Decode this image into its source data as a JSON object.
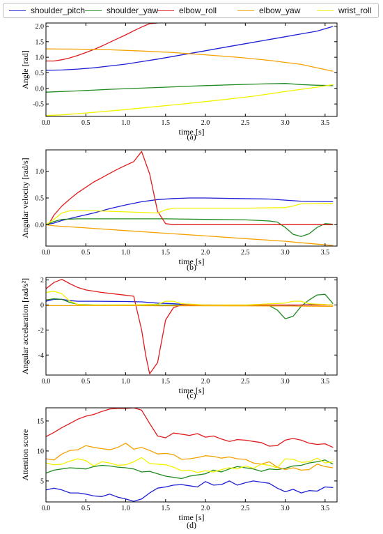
{
  "colors": {
    "shoulder_pitch": "#1f1fd6",
    "shoulder_yaw": "#1f8a1f",
    "elbow_roll": "#e01a1a",
    "elbow_yaw": "#f5a200",
    "wrist_roll": "#f2f200"
  },
  "legend": [
    "shoulder_pitch",
    "shoulder_yaw",
    "elbow_roll",
    "elbow_yaw",
    "wrist_roll"
  ],
  "chart_data": [
    {
      "type": "line",
      "caption": "(a)",
      "xlabel": "time [s]",
      "ylabel": "Angle [rad]",
      "xlim": [
        0,
        3.65
      ],
      "ylim": [
        -0.9,
        2.1
      ],
      "xticks": [
        "0.0",
        "0.5",
        "1.0",
        "1.5",
        "2.0",
        "2.5",
        "3.0",
        "3.5"
      ],
      "yticks": [
        "-0.5",
        "0.0",
        "0.5",
        "1.0",
        "1.5",
        "2.0"
      ],
      "series": [
        {
          "name": "shoulder_pitch",
          "x": [
            0,
            0.2,
            0.4,
            0.6,
            0.8,
            1.0,
            1.2,
            1.4,
            1.6,
            1.8,
            2.0,
            2.2,
            2.4,
            2.6,
            2.8,
            3.0,
            3.2,
            3.4,
            3.6
          ],
          "y": [
            0.58,
            0.59,
            0.62,
            0.66,
            0.72,
            0.78,
            0.86,
            0.94,
            1.03,
            1.12,
            1.21,
            1.3,
            1.39,
            1.48,
            1.57,
            1.66,
            1.75,
            1.84,
            1.99
          ]
        },
        {
          "name": "shoulder_yaw",
          "x": [
            0,
            0.4,
            0.8,
            1.2,
            1.6,
            2.0,
            2.4,
            2.8,
            3.0,
            3.2,
            3.4,
            3.6
          ],
          "y": [
            -0.12,
            -0.08,
            -0.03,
            0.01,
            0.05,
            0.09,
            0.12,
            0.15,
            0.16,
            0.12,
            0.1,
            0.09
          ]
        },
        {
          "name": "elbow_roll",
          "x": [
            0,
            0.1,
            0.2,
            0.3,
            0.4,
            0.5,
            0.6,
            0.7,
            0.8,
            0.9,
            1.0,
            1.1,
            1.2,
            1.3,
            1.4
          ],
          "y": [
            0.88,
            0.88,
            0.92,
            0.98,
            1.06,
            1.15,
            1.25,
            1.36,
            1.48,
            1.6,
            1.72,
            1.85,
            1.97,
            2.08,
            2.1
          ]
        },
        {
          "name": "elbow_yaw",
          "x": [
            0,
            0.4,
            0.8,
            1.2,
            1.6,
            2.0,
            2.4,
            2.8,
            3.2,
            3.6
          ],
          "y": [
            1.27,
            1.26,
            1.24,
            1.2,
            1.15,
            1.08,
            1.0,
            0.9,
            0.77,
            0.55
          ]
        },
        {
          "name": "wrist_roll",
          "x": [
            0,
            0.2,
            0.6,
            1.0,
            1.4,
            1.8,
            2.2,
            2.6,
            3.0,
            3.4,
            3.6
          ],
          "y": [
            -0.87,
            -0.85,
            -0.77,
            -0.68,
            -0.58,
            -0.48,
            -0.37,
            -0.25,
            -0.1,
            0.04,
            0.12
          ]
        }
      ]
    },
    {
      "type": "line",
      "caption": "(b)",
      "xlabel": "time [s]",
      "ylabel": "Angular velocity [rad/s]",
      "xlim": [
        0,
        3.65
      ],
      "ylim": [
        -0.4,
        1.4
      ],
      "xticks": [
        "0.0",
        "0.5",
        "1.0",
        "1.5",
        "2.0",
        "2.5",
        "3.0",
        "3.5"
      ],
      "yticks": [
        "0.0",
        "0.5",
        "1.0"
      ],
      "series": [
        {
          "name": "shoulder_pitch",
          "x": [
            0,
            0.1,
            0.2,
            0.4,
            0.6,
            0.8,
            1.0,
            1.2,
            1.4,
            1.6,
            1.8,
            2.0,
            2.4,
            2.8,
            3.0,
            3.2,
            3.6
          ],
          "y": [
            0,
            0.03,
            0.08,
            0.15,
            0.22,
            0.3,
            0.37,
            0.43,
            0.47,
            0.49,
            0.5,
            0.5,
            0.49,
            0.48,
            0.46,
            0.44,
            0.43
          ]
        },
        {
          "name": "shoulder_yaw",
          "x": [
            0,
            0.1,
            0.2,
            0.4,
            0.6,
            1.0,
            1.5,
            2.0,
            2.5,
            2.8,
            2.9,
            3.0,
            3.1,
            3.2,
            3.3,
            3.4,
            3.5,
            3.6
          ],
          "y": [
            0,
            0.06,
            0.1,
            0.11,
            0.11,
            0.11,
            0.11,
            0.1,
            0.09,
            0.07,
            0.05,
            -0.05,
            -0.18,
            -0.22,
            -0.17,
            -0.05,
            0.02,
            0.01
          ]
        },
        {
          "name": "elbow_roll",
          "x": [
            0,
            0.05,
            0.1,
            0.2,
            0.3,
            0.4,
            0.5,
            0.6,
            0.7,
            0.8,
            0.9,
            1.0,
            1.1,
            1.2,
            1.3,
            1.4,
            1.5,
            1.6,
            2.0,
            2.5,
            3.0,
            3.6
          ],
          "y": [
            0,
            0.05,
            0.18,
            0.35,
            0.48,
            0.6,
            0.7,
            0.8,
            0.88,
            0.96,
            1.04,
            1.11,
            1.18,
            1.37,
            0.95,
            0.25,
            0.02,
            0,
            0,
            0,
            0,
            0
          ]
        },
        {
          "name": "elbow_yaw",
          "x": [
            0,
            0.1,
            0.5,
            1.0,
            1.5,
            2.0,
            2.5,
            3.0,
            3.3,
            3.6
          ],
          "y": [
            0,
            -0.02,
            -0.06,
            -0.11,
            -0.16,
            -0.21,
            -0.26,
            -0.31,
            -0.35,
            -0.39
          ]
        },
        {
          "name": "wrist_roll",
          "x": [
            0,
            0.1,
            0.2,
            0.3,
            0.6,
            1.0,
            1.4,
            1.5,
            1.6,
            2.0,
            2.5,
            3.0,
            3.1,
            3.2,
            3.6
          ],
          "y": [
            0,
            0.1,
            0.22,
            0.26,
            0.26,
            0.24,
            0.22,
            0.28,
            0.31,
            0.31,
            0.31,
            0.32,
            0.35,
            0.39,
            0.4
          ]
        }
      ]
    },
    {
      "type": "line",
      "caption": "(c)",
      "xlabel": "time [s]",
      "ylabel": "Angular accelaration [rad/s²]",
      "xlim": [
        0,
        3.65
      ],
      "ylim": [
        -5.6,
        2.2
      ],
      "xticks": [
        "0.0",
        "0.5",
        "1.0",
        "1.5",
        "2.0",
        "2.5",
        "3.0",
        "3.5"
      ],
      "yticks": [
        "-4",
        "-2",
        "0",
        "2"
      ],
      "series": [
        {
          "name": "shoulder_pitch",
          "x": [
            0,
            0.1,
            0.2,
            0.3,
            0.4,
            0.6,
            1.0,
            1.2,
            1.4,
            1.6,
            1.8,
            2.0,
            2.5,
            3.0,
            3.2,
            3.4,
            3.6
          ],
          "y": [
            0.3,
            0.45,
            0.45,
            0.35,
            0.3,
            0.3,
            0.28,
            0.25,
            0.15,
            0.1,
            0.02,
            0,
            -0.02,
            -0.05,
            0,
            0.05,
            0
          ]
        },
        {
          "name": "shoulder_yaw",
          "x": [
            0,
            0.1,
            0.2,
            0.3,
            0.4,
            0.6,
            1.0,
            2.0,
            2.5,
            2.8,
            2.9,
            3.0,
            3.1,
            3.2,
            3.3,
            3.4,
            3.5,
            3.6
          ],
          "y": [
            0.4,
            0.5,
            0.45,
            0.2,
            0.05,
            0,
            0,
            -0.02,
            -0.02,
            -0.05,
            -0.4,
            -1.1,
            -0.9,
            -0.1,
            0.4,
            0.8,
            0.85,
            0.1
          ]
        },
        {
          "name": "elbow_roll",
          "x": [
            0,
            0.1,
            0.2,
            0.3,
            0.4,
            0.5,
            0.7,
            0.9,
            1.1,
            1.2,
            1.25,
            1.3,
            1.4,
            1.5,
            1.6,
            1.7,
            1.8,
            2.0,
            2.5,
            3.0,
            3.6
          ],
          "y": [
            1.3,
            1.8,
            2.05,
            1.7,
            1.4,
            1.2,
            1.0,
            0.85,
            0.7,
            -2.0,
            -4.0,
            -5.5,
            -4.6,
            -1.2,
            -0.2,
            0,
            0,
            0,
            0,
            0,
            0
          ]
        },
        {
          "name": "elbow_yaw",
          "x": [
            0,
            0.5,
            1.0,
            1.5,
            2.0,
            2.5,
            3.0,
            3.5,
            3.6
          ],
          "y": [
            -0.05,
            -0.05,
            -0.05,
            -0.06,
            -0.06,
            -0.07,
            -0.08,
            -0.1,
            -0.1
          ]
        },
        {
          "name": "wrist_roll",
          "x": [
            0,
            0.1,
            0.2,
            0.3,
            0.4,
            0.5,
            1.0,
            1.4,
            1.5,
            1.6,
            1.7,
            2.0,
            2.5,
            3.0,
            3.1,
            3.2,
            3.3,
            3.6
          ],
          "y": [
            1.0,
            1.1,
            0.9,
            0.3,
            0.05,
            0,
            0,
            0.05,
            0.3,
            0.3,
            0.1,
            0,
            0,
            0.15,
            0.3,
            0.3,
            0.1,
            0
          ]
        }
      ]
    },
    {
      "type": "line",
      "caption": "(d)",
      "xlabel": "time [s]",
      "ylabel": "Attention score",
      "xlim": [
        0,
        3.65
      ],
      "ylim": [
        1.5,
        17.2
      ],
      "xticks": [
        "0.0",
        "0.5",
        "1.0",
        "1.5",
        "2.0",
        "2.5",
        "3.0",
        "3.5"
      ],
      "yticks": [
        "5",
        "10",
        "15"
      ],
      "series": [
        {
          "name": "shoulder_pitch",
          "x": [
            0,
            0.1,
            0.2,
            0.3,
            0.4,
            0.5,
            0.6,
            0.7,
            0.8,
            0.9,
            1.0,
            1.1,
            1.2,
            1.3,
            1.4,
            1.5,
            1.6,
            1.7,
            1.8,
            1.9,
            2.0,
            2.1,
            2.2,
            2.3,
            2.4,
            2.5,
            2.6,
            2.7,
            2.8,
            2.9,
            3.0,
            3.1,
            3.2,
            3.3,
            3.4,
            3.5,
            3.6
          ],
          "y": [
            3.5,
            3.8,
            3.5,
            3.0,
            3.0,
            2.8,
            2.5,
            2.4,
            2.8,
            2.3,
            2.0,
            1.6,
            2.0,
            3.0,
            3.8,
            4.0,
            4.3,
            4.4,
            4.2,
            4.0,
            4.9,
            4.3,
            4.4,
            5.0,
            4.3,
            4.7,
            5.0,
            4.8,
            4.6,
            3.8,
            3.2,
            3.6,
            3.0,
            3.4,
            3.3,
            4.0,
            3.9
          ]
        },
        {
          "name": "shoulder_yaw",
          "x": [
            0,
            0.1,
            0.2,
            0.3,
            0.4,
            0.5,
            0.6,
            0.7,
            0.8,
            0.9,
            1.0,
            1.1,
            1.2,
            1.3,
            1.4,
            1.5,
            1.6,
            1.7,
            1.8,
            1.9,
            2.0,
            2.1,
            2.2,
            2.3,
            2.4,
            2.5,
            2.6,
            2.7,
            2.8,
            2.9,
            3.0,
            3.1,
            3.2,
            3.3,
            3.4,
            3.5,
            3.6
          ],
          "y": [
            6.3,
            6.8,
            7.0,
            7.2,
            7.1,
            7.0,
            7.4,
            7.6,
            7.5,
            7.3,
            7.2,
            7.0,
            6.5,
            6.6,
            6.2,
            5.8,
            5.6,
            5.4,
            5.8,
            6.0,
            6.2,
            6.8,
            6.5,
            7.0,
            7.4,
            7.2,
            7.0,
            6.6,
            7.0,
            6.9,
            7.1,
            7.5,
            7.6,
            8.0,
            8.2,
            8.5,
            7.8
          ]
        },
        {
          "name": "elbow_roll",
          "x": [
            0,
            0.1,
            0.2,
            0.3,
            0.4,
            0.5,
            0.6,
            0.7,
            0.8,
            0.9,
            1.0,
            1.1,
            1.2,
            1.3,
            1.4,
            1.5,
            1.6,
            1.7,
            1.8,
            1.9,
            2.0,
            2.1,
            2.2,
            2.3,
            2.4,
            2.5,
            2.6,
            2.7,
            2.8,
            2.9,
            3.0,
            3.1,
            3.2,
            3.3,
            3.4,
            3.5,
            3.6
          ],
          "y": [
            12.4,
            13.1,
            13.9,
            14.6,
            15.3,
            15.8,
            16.1,
            16.6,
            17.0,
            17.1,
            17.1,
            17.2,
            16.8,
            14.6,
            12.5,
            12.2,
            13.0,
            12.8,
            12.6,
            12.9,
            12.3,
            12.5,
            12.0,
            11.6,
            11.9,
            11.8,
            11.6,
            11.4,
            10.8,
            10.9,
            11.8,
            12.1,
            11.8,
            11.3,
            11.1,
            11.2,
            10.6
          ]
        },
        {
          "name": "elbow_yaw",
          "x": [
            0,
            0.1,
            0.2,
            0.3,
            0.4,
            0.5,
            0.6,
            0.7,
            0.8,
            0.9,
            1.0,
            1.1,
            1.2,
            1.3,
            1.4,
            1.5,
            1.6,
            1.7,
            1.8,
            1.9,
            2.0,
            2.1,
            2.2,
            2.3,
            2.4,
            2.5,
            2.6,
            2.7,
            2.8,
            2.9,
            3.0,
            3.1,
            3.2,
            3.3,
            3.4,
            3.5,
            3.6
          ],
          "y": [
            8.7,
            8.5,
            9.5,
            10.1,
            10.2,
            10.9,
            10.6,
            10.4,
            10.2,
            10.6,
            11.3,
            10.3,
            10.6,
            10.1,
            9.5,
            9.6,
            9.4,
            8.6,
            8.7,
            8.9,
            9.2,
            9.1,
            8.8,
            9.0,
            8.7,
            8.6,
            8.0,
            7.8,
            8.2,
            7.3,
            6.9,
            7.2,
            6.8,
            6.9,
            7.8,
            7.4,
            7.2
          ]
        },
        {
          "name": "wrist_roll",
          "x": [
            0,
            0.1,
            0.2,
            0.3,
            0.4,
            0.5,
            0.6,
            0.7,
            0.8,
            0.9,
            1.0,
            1.1,
            1.2,
            1.3,
            1.4,
            1.5,
            1.6,
            1.7,
            1.8,
            1.9,
            2.0,
            2.1,
            2.2,
            2.3,
            2.4,
            2.5,
            2.6,
            2.7,
            2.8,
            2.9,
            3.0,
            3.1,
            3.2,
            3.3,
            3.4,
            3.5,
            3.6
          ],
          "y": [
            8.0,
            7.7,
            7.8,
            8.3,
            8.7,
            8.4,
            7.5,
            8.2,
            8.0,
            7.6,
            7.7,
            8.2,
            8.9,
            7.9,
            7.8,
            7.7,
            7.3,
            6.7,
            6.8,
            6.4,
            6.7,
            6.5,
            6.9,
            7.2,
            7.0,
            7.5,
            7.1,
            7.8,
            7.6,
            7.2,
            8.7,
            8.6,
            8.1,
            8.2,
            8.8,
            8.0,
            8.2
          ]
        }
      ]
    }
  ]
}
